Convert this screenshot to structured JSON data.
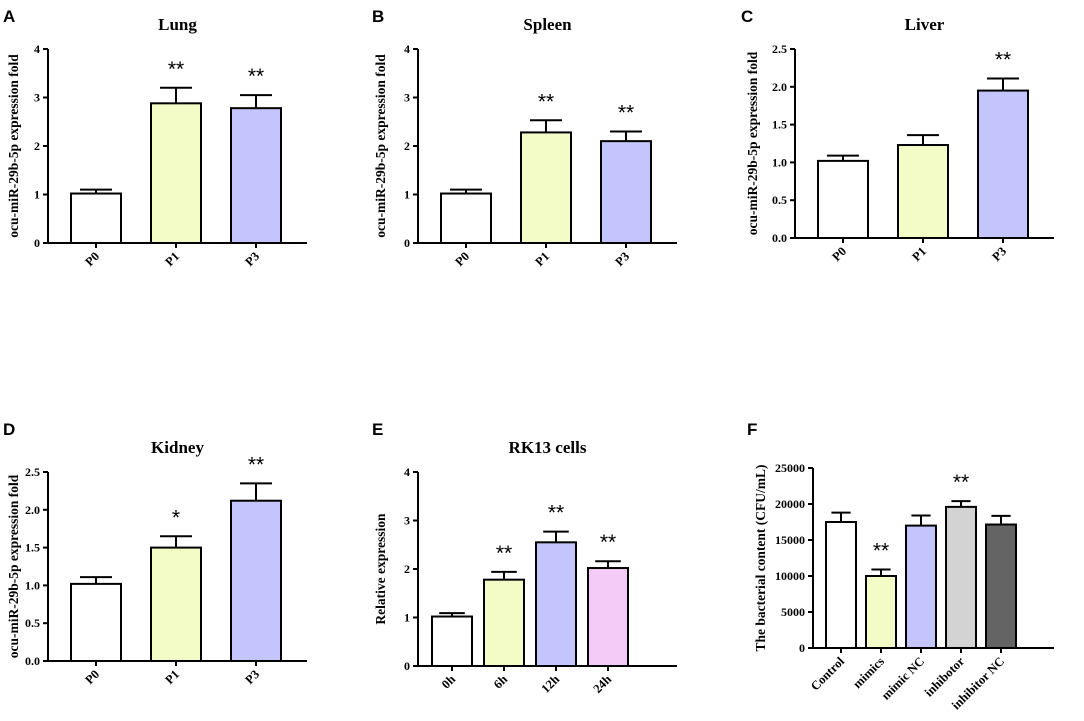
{
  "figure": {
    "charts": [
      "A",
      "B",
      "C",
      "D",
      "E",
      "F"
    ]
  },
  "chart_data": [
    {
      "panel": "A",
      "type": "bar",
      "title": "Lung",
      "ylabel": "ocu-miR-29b-5p expression fold",
      "xlabel": "",
      "categories": [
        "P0",
        "P1",
        "P3"
      ],
      "values": [
        1.02,
        2.88,
        2.78
      ],
      "errors": [
        0.08,
        0.32,
        0.27
      ],
      "significance": [
        "",
        "**",
        "**"
      ],
      "colors": [
        "#ffffff",
        "#f3fcc6",
        "#c4c5fc"
      ],
      "ylim": [
        0,
        4
      ],
      "yticks": [
        0,
        1,
        2,
        3,
        4
      ],
      "ytick_labels": [
        "0",
        "1",
        "2",
        "3",
        "4"
      ]
    },
    {
      "panel": "B",
      "type": "bar",
      "title": "Spleen",
      "ylabel": "ocu-miR-29b-5p expression fold",
      "xlabel": "",
      "categories": [
        "P0",
        "P1",
        "P3"
      ],
      "values": [
        1.02,
        2.28,
        2.1
      ],
      "errors": [
        0.08,
        0.25,
        0.2
      ],
      "significance": [
        "",
        "**",
        "**"
      ],
      "colors": [
        "#ffffff",
        "#f3fcc6",
        "#c4c5fc"
      ],
      "ylim": [
        0,
        4
      ],
      "yticks": [
        0,
        1,
        2,
        3,
        4
      ],
      "ytick_labels": [
        "0",
        "1",
        "2",
        "3",
        "4"
      ]
    },
    {
      "panel": "C",
      "type": "bar",
      "title": "Liver",
      "ylabel": "ocu-miR-29b-5p expression fold",
      "xlabel": "",
      "categories": [
        "P0",
        "P1",
        "P3"
      ],
      "values": [
        1.02,
        1.23,
        1.95
      ],
      "errors": [
        0.07,
        0.13,
        0.16
      ],
      "significance": [
        "",
        "",
        "**"
      ],
      "colors": [
        "#ffffff",
        "#f3fcc6",
        "#c4c5fc"
      ],
      "ylim": [
        0,
        2.5
      ],
      "yticks": [
        0,
        0.5,
        1,
        1.5,
        2,
        2.5
      ],
      "ytick_labels": [
        "0.0",
        "0.5",
        "1.0",
        "1.5",
        "2.0",
        "2.5"
      ]
    },
    {
      "panel": "D",
      "type": "bar",
      "title": "Kidney",
      "ylabel": "ocu-miR-29b-5p expression fold",
      "xlabel": "",
      "categories": [
        "P0",
        "P1",
        "P3"
      ],
      "values": [
        1.02,
        1.5,
        2.12
      ],
      "errors": [
        0.09,
        0.15,
        0.23
      ],
      "significance": [
        "",
        "*",
        "**"
      ],
      "colors": [
        "#ffffff",
        "#f3fcc6",
        "#c4c5fc"
      ],
      "ylim": [
        0,
        2.5
      ],
      "yticks": [
        0,
        0.5,
        1,
        1.5,
        2,
        2.5
      ],
      "ytick_labels": [
        "0.0",
        "0.5",
        "1.0",
        "1.5",
        "2.0",
        "2.5"
      ]
    },
    {
      "panel": "E",
      "type": "bar",
      "title": "RK13 cells",
      "ylabel": "Relative expression",
      "xlabel": "",
      "categories": [
        "0h",
        "6h",
        "12h",
        "24h"
      ],
      "values": [
        1.02,
        1.78,
        2.55,
        2.02
      ],
      "errors": [
        0.07,
        0.16,
        0.22,
        0.14
      ],
      "significance": [
        "",
        "**",
        "**",
        "**"
      ],
      "colors": [
        "#ffffff",
        "#f3fcc6",
        "#c4c5fc",
        "#f3cbf6"
      ],
      "ylim": [
        0,
        4
      ],
      "yticks": [
        0,
        1,
        2,
        3,
        4
      ],
      "ytick_labels": [
        "0",
        "1",
        "2",
        "3",
        "4"
      ]
    },
    {
      "panel": "F",
      "type": "bar",
      "title": "",
      "ylabel": "The bacterial content (CFU/mL)",
      "xlabel": "",
      "categories": [
        "Control",
        "mimics",
        "mimic NC",
        "inhibotor",
        "inhibitor NC"
      ],
      "values": [
        17500,
        10000,
        17000,
        19600,
        17150
      ],
      "errors": [
        1300,
        900,
        1400,
        800,
        1200
      ],
      "significance": [
        "",
        "**",
        "",
        "**",
        ""
      ],
      "colors": [
        "#ffffff",
        "#f3fcc6",
        "#c4c5fc",
        "#d3d3d3",
        "#646464"
      ],
      "ylim": [
        0,
        25000
      ],
      "yticks": [
        0,
        5000,
        10000,
        15000,
        20000,
        25000
      ],
      "ytick_labels": [
        "0",
        "5000",
        "10000",
        "15000",
        "20000",
        "25000"
      ]
    }
  ]
}
